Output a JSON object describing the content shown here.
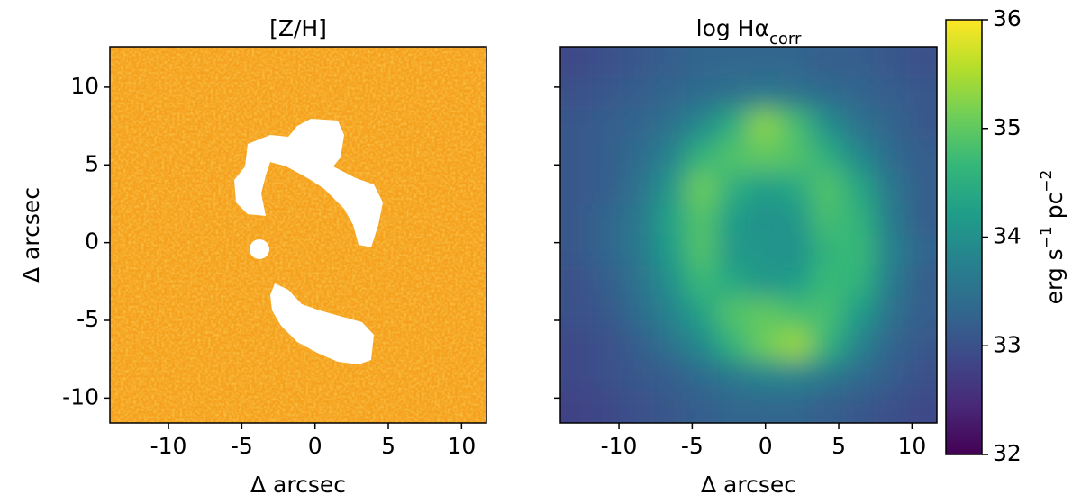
{
  "chart_data": [
    {
      "type": "map",
      "title": "[Z/H]",
      "xlabel": "Δ arcsec",
      "ylabel": "Δ arcsec",
      "xlim": [
        -14,
        11.7
      ],
      "ylim": [
        -11.6,
        12.6
      ],
      "xticks": [
        -10,
        -5,
        0,
        5,
        10
      ],
      "yticks": [
        -10,
        -5,
        0,
        5,
        10
      ],
      "color": "#f5a11e"
    },
    {
      "type": "heatmap",
      "title": "log Hα",
      "title_subscript": "corr",
      "xlabel": "Δ arcsec",
      "xlim": [
        -14,
        11.7
      ],
      "ylim": [
        -11.6,
        12.6
      ],
      "xticks": [
        -10,
        -5,
        0,
        5,
        10
      ],
      "yticks": [
        -10,
        -5,
        0,
        5,
        10
      ],
      "colormap": "viridis",
      "zlim": [
        32,
        36
      ],
      "zticks": [
        32,
        33,
        34,
        35,
        36
      ],
      "colorbar_label": [
        {
          "text": "erg s"
        },
        {
          "text": "−1",
          "sup": true
        },
        {
          "text": " pc"
        },
        {
          "text": "−2",
          "sup": true
        }
      ],
      "z": [
        [
          32.9,
          33.0,
          33.1,
          33.2,
          33.3,
          33.3,
          33.3,
          33.3,
          33.2,
          33.2,
          33.1,
          33.0
        ],
        [
          33.0,
          33.1,
          33.2,
          33.3,
          33.4,
          33.5,
          33.6,
          33.5,
          33.4,
          33.3,
          33.2,
          33.1
        ],
        [
          33.1,
          33.2,
          33.3,
          33.5,
          33.9,
          34.5,
          35.3,
          34.8,
          34.0,
          33.5,
          33.3,
          33.1
        ],
        [
          33.1,
          33.2,
          33.4,
          33.8,
          34.6,
          34.9,
          35.0,
          34.9,
          34.5,
          33.9,
          33.4,
          33.2
        ],
        [
          33.1,
          33.2,
          33.5,
          34.1,
          35.1,
          34.5,
          34.2,
          34.4,
          34.9,
          34.4,
          33.6,
          33.2
        ],
        [
          33.1,
          33.3,
          33.6,
          34.3,
          34.9,
          34.2,
          34.0,
          34.1,
          34.8,
          34.6,
          33.7,
          33.2
        ],
        [
          33.1,
          33.3,
          33.6,
          34.2,
          34.9,
          34.1,
          34.1,
          34.0,
          34.6,
          34.7,
          33.8,
          33.3
        ],
        [
          33.0,
          33.2,
          33.5,
          34.0,
          34.7,
          34.4,
          34.1,
          34.2,
          34.7,
          34.6,
          33.7,
          33.2
        ],
        [
          33.0,
          33.1,
          33.4,
          33.8,
          34.3,
          34.9,
          35.0,
          34.8,
          34.8,
          34.2,
          33.5,
          33.2
        ],
        [
          32.9,
          33.0,
          33.2,
          33.5,
          33.9,
          34.6,
          35.1,
          35.4,
          34.6,
          33.8,
          33.3,
          33.1
        ],
        [
          32.9,
          33.0,
          33.1,
          33.2,
          33.4,
          33.6,
          33.8,
          33.8,
          33.6,
          33.4,
          33.2,
          33.0
        ],
        [
          32.8,
          32.9,
          33.0,
          33.1,
          33.2,
          33.3,
          33.3,
          33.3,
          33.2,
          33.1,
          33.0,
          32.9
        ]
      ]
    }
  ]
}
